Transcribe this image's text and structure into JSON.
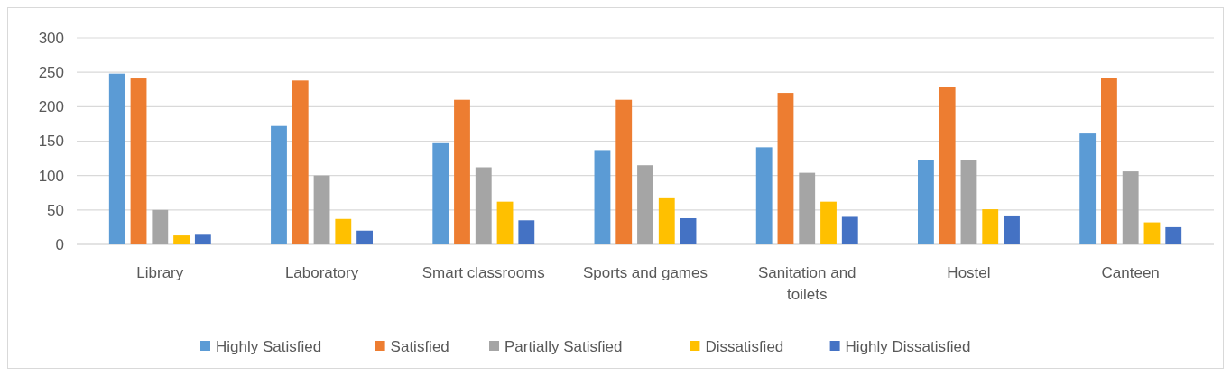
{
  "chart_data": {
    "type": "bar",
    "categories": [
      "Library",
      "Laboratory",
      "Smart classrooms",
      "Sports and games",
      "Sanitation and toilets",
      "Hostel",
      "Canteen"
    ],
    "series": [
      {
        "name": "Highly Satisfied",
        "color": "#5b9bd5",
        "values": [
          248,
          172,
          147,
          137,
          141,
          123,
          161
        ]
      },
      {
        "name": "Satisfied",
        "color": "#ed7d31",
        "values": [
          241,
          238,
          210,
          210,
          220,
          228,
          242
        ]
      },
      {
        "name": "Partially Satisfied",
        "color": "#a5a5a5",
        "values": [
          50,
          100,
          112,
          115,
          104,
          122,
          106
        ]
      },
      {
        "name": "Dissatisfied",
        "color": "#ffc000",
        "values": [
          13,
          37,
          62,
          67,
          62,
          51,
          32
        ]
      },
      {
        "name": "Highly Dissatisfied",
        "color": "#4472c4",
        "values": [
          14,
          20,
          35,
          38,
          40,
          42,
          25
        ]
      }
    ],
    "ylim": [
      0,
      300
    ],
    "yticks": [
      0,
      50,
      100,
      150,
      200,
      250,
      300
    ],
    "grid": "y",
    "legend": "bottom"
  }
}
